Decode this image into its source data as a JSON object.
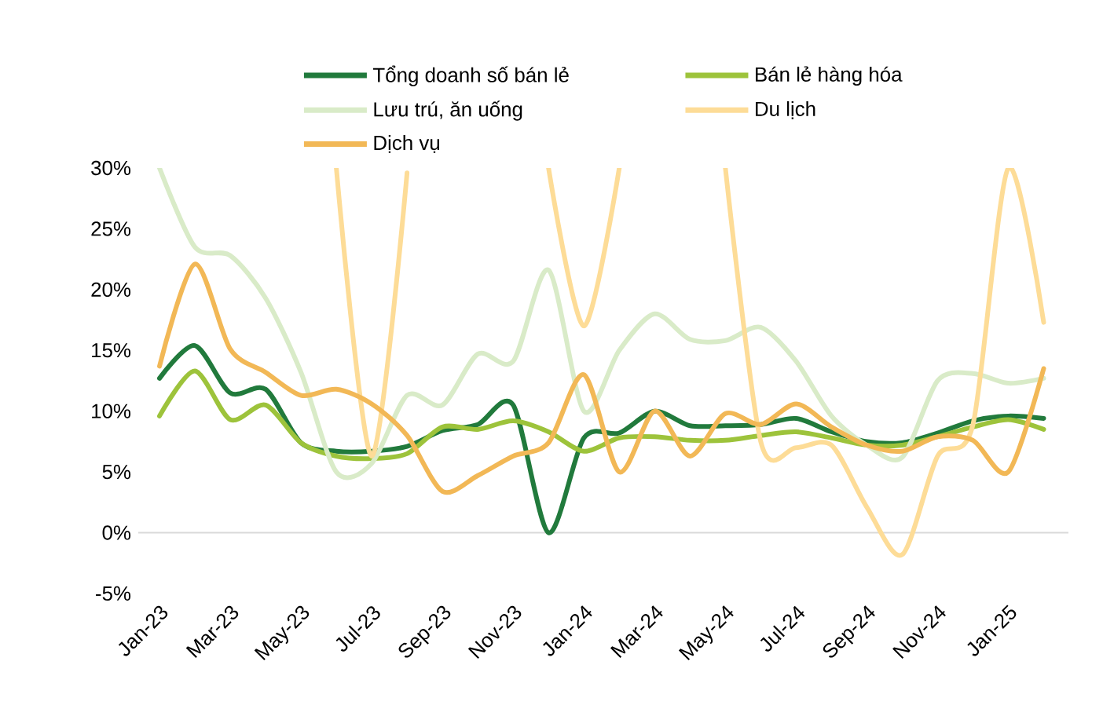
{
  "chart_data": {
    "type": "line",
    "categories": [
      "Jan-23",
      null,
      "Mar-23",
      null,
      "May-23",
      null,
      "Jul-23",
      null,
      "Sep-23",
      null,
      "Nov-23",
      null,
      "Jan-24",
      null,
      "Mar-24",
      null,
      "May-24",
      null,
      "Jul-24",
      null,
      "Sep-24",
      null,
      "Nov-24",
      null,
      "Jan-25",
      null
    ],
    "series": [
      {
        "name": "Tổng doanh số bán lẻ",
        "color": "#217a3c",
        "values": [
          12.7,
          15.4,
          11.5,
          11.8,
          7.4,
          6.7,
          6.7,
          7.1,
          8.4,
          8.9,
          10.5,
          0,
          7.8,
          8.2,
          10,
          8.8,
          8.8,
          8.9,
          9.4,
          8.3,
          7.5,
          7.4,
          8.2,
          9.2,
          9.6,
          9.4
        ]
      },
      {
        "name": "Bán lẻ hàng hóa",
        "color": "#9dc33b",
        "values": [
          9.6,
          13.3,
          9.3,
          10.5,
          7.4,
          6.3,
          6.1,
          6.5,
          8.7,
          8.5,
          9.2,
          8.3,
          6.7,
          7.8,
          7.9,
          7.6,
          7.6,
          8.0,
          8.3,
          7.8,
          7.2,
          7.2,
          7.9,
          8.7,
          9.3,
          8.5
        ]
      },
      {
        "name": "Lưu trú, ăn uống",
        "color": "#d9ebc8",
        "values": [
          30,
          23.5,
          22.8,
          19.3,
          13.2,
          5.0,
          5.7,
          11.3,
          10.5,
          14.7,
          14.1,
          21.6,
          10,
          15,
          18,
          15.9,
          15.8,
          16.9,
          14.1,
          9.6,
          7.2,
          6.2,
          12.5,
          13.1,
          12.3,
          12.7
        ]
      },
      {
        "name": "Du lịch",
        "color": "#fddc97",
        "values": [
          null,
          null,
          null,
          null,
          null,
          30,
          6.3,
          29.6,
          null,
          null,
          null,
          30,
          17,
          30,
          null,
          null,
          30,
          7.5,
          7,
          7.2,
          2.1,
          -1.8,
          6.3,
          8.9,
          30,
          17.3
        ]
      },
      {
        "name": "Dịch vụ",
        "color": "#f2b856",
        "values": [
          13.7,
          22.1,
          15.1,
          13.2,
          11.3,
          11.8,
          10.6,
          8,
          3.4,
          4.7,
          6.3,
          7.4,
          13,
          5,
          10,
          6.3,
          9.8,
          8.9,
          10.6,
          8.7,
          7.2,
          6.7,
          7.9,
          7.6,
          5,
          13.5
        ]
      }
    ],
    "ylim": [
      -5,
      30
    ],
    "yticks": [
      {
        "value": -5,
        "label": "-5%"
      },
      {
        "value": 0,
        "label": "0%"
      },
      {
        "value": 5,
        "label": "5%"
      },
      {
        "value": 10,
        "label": "10%"
      },
      {
        "value": 15,
        "label": "15%"
      },
      {
        "value": 20,
        "label": "20%"
      },
      {
        "value": 25,
        "label": "25%"
      },
      {
        "value": 30,
        "label": "30%"
      }
    ],
    "ref_lines": [
      {
        "axis": "y",
        "value": 0,
        "color": "#d9d9d9"
      }
    ],
    "legend": "top",
    "marker": "none",
    "line_style": "solid"
  }
}
